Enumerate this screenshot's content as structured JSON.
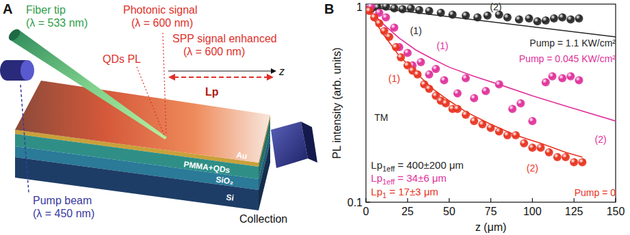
{
  "diagram": {
    "letter": "A",
    "fiber_tip": [
      "Fiber tip",
      "(λ = 533 nm)"
    ],
    "photonic_signal": [
      "Photonic signal",
      "(λ = 600 nm)"
    ],
    "qds_pl": "QDs PL",
    "spp_signal": [
      "SPP signal enhanced",
      "(λ = 600 nm)"
    ],
    "lp": "Lp",
    "z": "z",
    "pump_beam": [
      "Pump beam",
      "(λ = 450 nm)"
    ],
    "layers": [
      "Au",
      "PMMA+QDs",
      "SiO₂",
      "Si"
    ],
    "collection": "Collection"
  },
  "chart_data": {
    "type": "scatter",
    "title": "B",
    "x_label": "z (μm)",
    "y_label": "PL intensity (arb. units)",
    "xlim": [
      0,
      150
    ],
    "xticks": [
      0,
      25,
      50,
      75,
      100,
      125,
      150
    ],
    "ylim": [
      0.1,
      1.03
    ],
    "yticks": [
      0.1,
      1
    ],
    "log": "y",
    "series": [
      {
        "type": "scatter",
        "color": "#262626",
        "marker": "sphere",
        "x": [
          3,
          7,
          12,
          17,
          22,
          27,
          32,
          38,
          45,
          52,
          60,
          67,
          73,
          80,
          85,
          92,
          98,
          103,
          108,
          113,
          118,
          123,
          128
        ],
        "values": [
          0.97,
          0.99,
          1.0,
          0.98,
          0.97,
          0.98,
          0.96,
          0.95,
          0.93,
          0.91,
          0.9,
          0.88,
          0.9,
          0.91,
          0.88,
          0.86,
          0.87,
          0.84,
          0.85,
          0.87,
          0.88,
          0.86,
          0.87
        ]
      },
      {
        "type": "scatter",
        "color": "#e0309a",
        "marker": "sphere",
        "x": [
          3,
          8,
          12,
          17,
          20,
          25,
          28,
          33,
          38,
          42,
          47,
          55,
          60,
          65,
          72,
          80,
          88,
          93,
          100,
          108,
          112,
          118,
          123,
          128
        ],
        "values": [
          1.0,
          0.93,
          0.88,
          0.78,
          0.62,
          0.58,
          0.5,
          0.52,
          0.45,
          0.48,
          0.42,
          0.36,
          0.43,
          0.34,
          0.37,
          0.4,
          0.3,
          0.32,
          0.26,
          0.41,
          0.44,
          0.43,
          0.44,
          0.42
        ]
      },
      {
        "type": "scatter",
        "color": "#e8321e",
        "marker": "sphere",
        "x": [
          2,
          5,
          8,
          11,
          14,
          18,
          21,
          25,
          28,
          31,
          35,
          38,
          42,
          45,
          48,
          52,
          55,
          60,
          65,
          70,
          75,
          80,
          85,
          90,
          95,
          100,
          105,
          110,
          115,
          120,
          125,
          130
        ],
        "values": [
          0.95,
          0.88,
          0.82,
          0.75,
          0.7,
          0.62,
          0.55,
          0.5,
          0.47,
          0.45,
          0.4,
          0.38,
          0.35,
          0.33,
          0.32,
          0.3,
          0.3,
          0.28,
          0.26,
          0.25,
          0.24,
          0.23,
          0.22,
          0.22,
          0.2,
          0.19,
          0.19,
          0.18,
          0.17,
          0.17,
          0.16,
          0.16
        ]
      },
      {
        "type": "line",
        "color": "#262626",
        "line_style": "solid",
        "x": [
          0,
          150
        ],
        "values": [
          1,
          0.7
        ]
      },
      {
        "type": "line",
        "color": "#e0309a",
        "line_style": "solid",
        "x": [
          0,
          10,
          20,
          30,
          40,
          50,
          65,
          80,
          100,
          120,
          150
        ],
        "values": [
          1,
          0.82,
          0.69,
          0.6,
          0.54,
          0.49,
          0.44,
          0.4,
          0.35,
          0.31,
          0.26
        ]
      },
      {
        "type": "line",
        "color": "#e8321e",
        "line_style": "solid",
        "x": [
          0,
          10,
          20,
          30,
          40,
          50,
          60,
          75,
          90,
          105,
          120,
          130
        ],
        "values": [
          1,
          0.73,
          0.56,
          0.46,
          0.38,
          0.33,
          0.29,
          0.25,
          0.22,
          0.2,
          0.18,
          0.17
        ]
      }
    ],
    "annotations": [
      {
        "text": "(1)",
        "x": 30,
        "y": 0.75,
        "color": "#262626"
      },
      {
        "text": "(2)",
        "x": 78,
        "y": 1.0,
        "color": "#262626"
      },
      {
        "text": "(1)",
        "x": 46,
        "y": 0.63,
        "color": "#e0309a"
      },
      {
        "text": "(1)",
        "x": 17,
        "y": 0.43,
        "color": "#e8321e"
      },
      {
        "text": "(2)",
        "x": 141,
        "y": 0.21,
        "color": "#e0309a"
      },
      {
        "text": "(2)",
        "x": 100,
        "y": 0.15,
        "color": "#e8321e"
      },
      {
        "text": "Pump = 1.1 KW/cm²",
        "x": 150,
        "y": 0.65,
        "color": "#262626",
        "anchor": "end"
      },
      {
        "text": "Pump = 0.045 KW/cm²",
        "x": 150,
        "y": 0.54,
        "color": "#e0309a",
        "anchor": "end"
      },
      {
        "text": "TM",
        "x": 5,
        "y": 0.27,
        "color": "#262626",
        "anchor": "start"
      },
      {
        "parts": [
          "Lp",
          "1eff",
          " = 400±200 μm"
        ],
        "x": 3,
        "y": 0.155,
        "color": "#262626",
        "anchor": "start"
      },
      {
        "parts": [
          "Lp",
          "1eff",
          " = 34±6 μm"
        ],
        "x": 3,
        "y": 0.132,
        "color": "#e0309a",
        "anchor": "start"
      },
      {
        "parts": [
          "Lp",
          "1",
          " = 17±3 μm"
        ],
        "x": 3,
        "y": 0.113,
        "color": "#e8321e",
        "anchor": "start"
      },
      {
        "text": "Pump = 0",
        "x": 150,
        "y": 0.112,
        "color": "#e8321e",
        "anchor": "end"
      }
    ]
  }
}
